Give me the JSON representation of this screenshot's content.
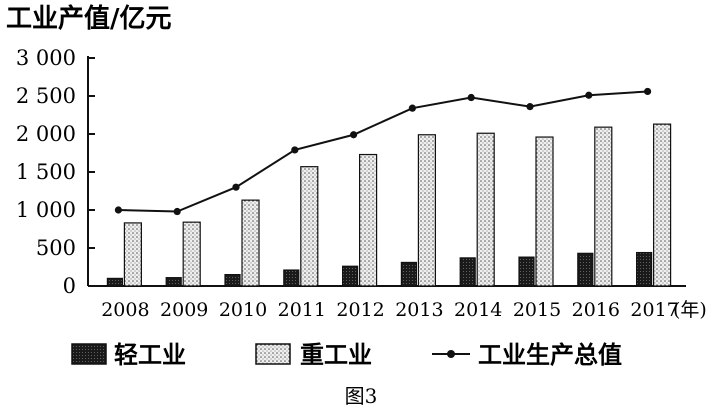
{
  "chart_data": {
    "type": "bar",
    "ylabel": "工业产值/亿元",
    "xlabel": "(年)",
    "categories": [
      "2008",
      "2009",
      "2010",
      "2011",
      "2012",
      "2013",
      "2014",
      "2015",
      "2016",
      "2017"
    ],
    "series": [
      {
        "name": "轻工业",
        "type": "bar",
        "values": [
          100,
          110,
          150,
          210,
          260,
          310,
          370,
          380,
          430,
          440
        ]
      },
      {
        "name": "重工业",
        "type": "bar",
        "values": [
          830,
          840,
          1130,
          1570,
          1730,
          1990,
          2010,
          1960,
          2090,
          2130
        ]
      },
      {
        "name": "工业生产总值",
        "type": "line",
        "values": [
          1000,
          980,
          1300,
          1790,
          1990,
          2340,
          2480,
          2360,
          2510,
          2560
        ]
      }
    ],
    "yticks": [
      "0",
      "500",
      "1 000",
      "1 500",
      "2 000",
      "2 500",
      "3 000"
    ],
    "ylim": [
      0,
      3000
    ],
    "grid": false,
    "legend_position": "bottom",
    "colors": {
      "light": "#222222",
      "heavy": "#d8d8d8",
      "line": "#111111"
    }
  },
  "figure_caption": "图3"
}
